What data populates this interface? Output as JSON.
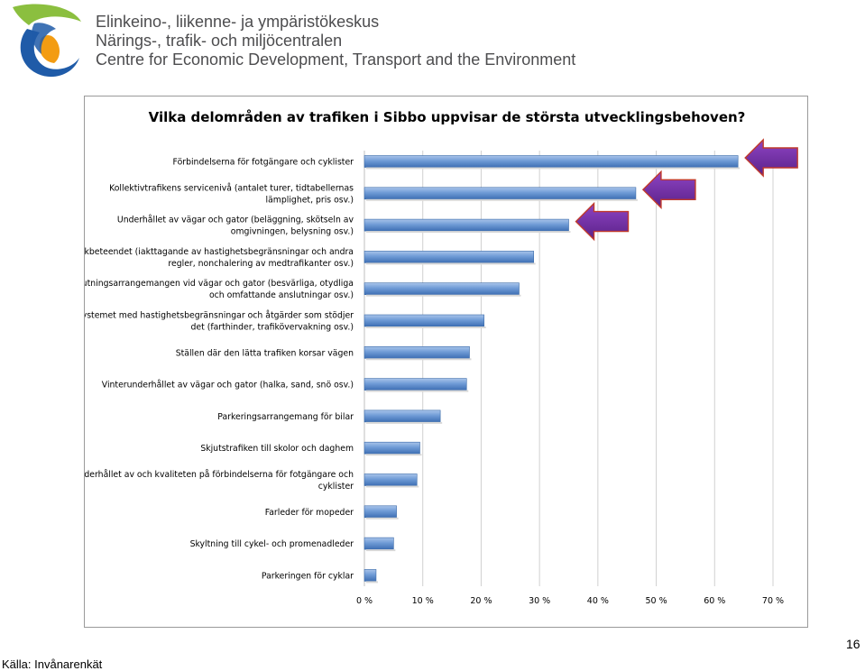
{
  "header": {
    "org_fi": "Elinkeino-, liikenne- ja ympäristökeskus",
    "org_sv": "Närings-, trafik- och miljöcentralen",
    "org_en": "Centre for Economic Development, Transport and the Environment"
  },
  "colors": {
    "logo_green": "#8bbf3f",
    "logo_blue": "#1f5ba8",
    "logo_orange": "#f39c12",
    "bar_blue": "#4f81bd",
    "arrow_purple": "#7030a0",
    "arrow_border": "#c0392b"
  },
  "chart_data": {
    "type": "bar",
    "orientation": "horizontal",
    "title": "Vilka delområden av trafiken i Sibbo uppvisar de största utvecklingsbehoven?",
    "categories": [
      "Förbindelserna för fotgängare och cyklister",
      "Kollektivtrafikens servicenivå (antalet turer, tidtabellernas lämplighet, pris osv.)",
      "Underhållet av vägar och gator (beläggning, skötseln av omgivningen, belysning osv.)",
      "Trafikbeteendet (iakttagande av hastighetsbegränsningar och andra regler, nonchalering av medtrafikanter osv.)",
      "Anslutningsarrangemangen vid vägar och gator (besvärliga, otydliga och omfattande anslutningar osv.)",
      "Systemet med hastighetsbegränsningar och åtgärder som stödjer det (farthinder, trafikövervakning osv.)",
      "Ställen där den lätta trafiken korsar vägen",
      "Vinterunderhållet av vägar och gator (halka, sand, snö osv.)",
      "Parkeringsarrangemang för bilar",
      "Skjutstrafiken till skolor och daghem",
      "Underhållet av och kvaliteten på förbindelserna för fotgängare och cyklister",
      "Farleder för mopeder",
      "Skyltning till cykel- och promenadleder",
      "Parkeringen för cyklar"
    ],
    "category_lines": [
      [
        "Förbindelserna för fotgängare och cyklister"
      ],
      [
        "Kollektivtrafikens servicenivå (antalet turer, tidtabellernas",
        "lämplighet, pris osv.)"
      ],
      [
        "Underhållet av vägar och gator (beläggning, skötseln av",
        "omgivningen, belysning osv.)"
      ],
      [
        "Trafikbeteendet (iakttagande av hastighetsbegränsningar och andra",
        "regler, nonchalering av medtrafikanter osv.)"
      ],
      [
        "Anslutningsarrangemangen vid vägar och gator (besvärliga, otydliga",
        "och omfattande anslutningar osv.)"
      ],
      [
        "Systemet med hastighetsbegränsningar och åtgärder som stödjer",
        "det (farthinder, trafikövervakning osv.)"
      ],
      [
        "Ställen där den lätta trafiken korsar vägen"
      ],
      [
        "Vinterunderhållet av vägar och gator (halka, sand, snö osv.)"
      ],
      [
        "Parkeringsarrangemang för bilar"
      ],
      [
        "Skjutstrafiken till skolor och daghem"
      ],
      [
        "Underhållet av och kvaliteten på förbindelserna för fotgängare och",
        "cyklister"
      ],
      [
        "Farleder för mopeder"
      ],
      [
        "Skyltning till cykel- och promenadleder"
      ],
      [
        "Parkeringen för cyklar"
      ]
    ],
    "values": [
      64,
      46.5,
      35,
      29,
      26.5,
      20.5,
      18,
      17.5,
      13,
      9.5,
      9,
      5.5,
      5,
      2
    ],
    "xlim": [
      0,
      70
    ],
    "xticks": [
      "0 %",
      "10 %",
      "20 %",
      "30 %",
      "40 %",
      "50 %",
      "60 %",
      "70 %"
    ],
    "grid": true,
    "highlighted": [
      0,
      1,
      2
    ]
  },
  "footer": {
    "source": "Källa: Invånarenkät",
    "page_number": "16"
  }
}
